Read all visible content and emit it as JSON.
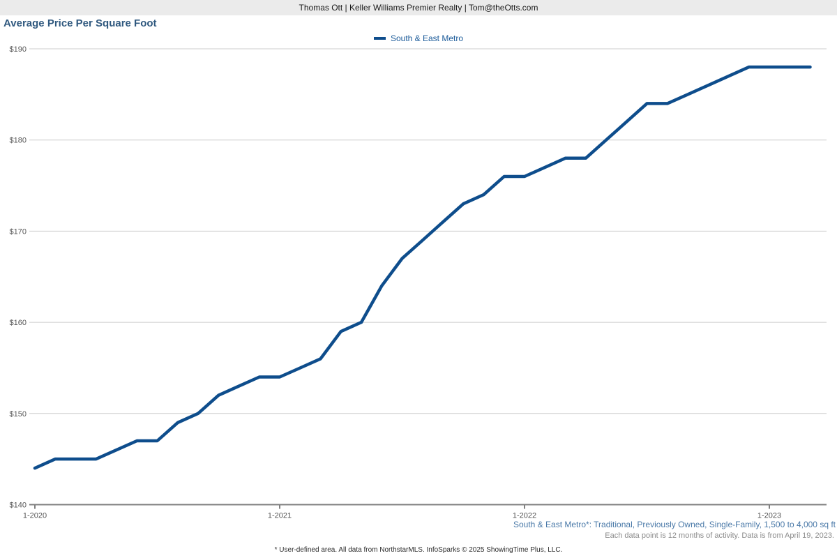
{
  "header": {
    "agent_line": "Thomas Ott | Keller Williams Premier Realty | Tom@theOtts.com"
  },
  "title": "Average Price Per Square Foot",
  "legend": {
    "label": "South & East Metro"
  },
  "footnotes": {
    "series_definition": "South & East Metro*: Traditional, Previously Owned, Single-Family, 1,500 to 4,000 sq ft",
    "data_note": "Each data point is 12 months of activity. Data is from April 19, 2023.",
    "attribution": "* User-defined area. All data from NorthstarMLS. InfoSparks © 2025 ShowingTime Plus, LLC."
  },
  "colors": {
    "line": "#0e4d8c",
    "legend_text": "#1a5a99",
    "gridline": "#cccccc",
    "axis": "#808080",
    "tick_label": "#555555",
    "title": "#30597f",
    "header_bg": "#ebebeb",
    "footnote_blue": "#4a79a8",
    "footnote_gray": "#8a8a8a"
  },
  "chart_data": {
    "type": "line",
    "title": "Average Price Per Square Foot",
    "ylabel": "",
    "xlabel": "",
    "ylim": [
      140,
      190
    ],
    "grid": "horizontal",
    "legend_position": "top-center",
    "y_tick_values": [
      140,
      150,
      160,
      170,
      180,
      190
    ],
    "y_ticks": [
      "$140",
      "$150",
      "$160",
      "$170",
      "$180",
      "$190"
    ],
    "x_ticks": [
      "1-2020",
      "1-2021",
      "1-2022",
      "1-2023"
    ],
    "x_tick_indices": [
      0,
      12,
      24,
      36
    ],
    "x": [
      "1-2020",
      "2-2020",
      "3-2020",
      "4-2020",
      "5-2020",
      "6-2020",
      "7-2020",
      "8-2020",
      "9-2020",
      "10-2020",
      "11-2020",
      "12-2020",
      "1-2021",
      "2-2021",
      "3-2021",
      "4-2021",
      "5-2021",
      "6-2021",
      "7-2021",
      "8-2021",
      "9-2021",
      "10-2021",
      "11-2021",
      "12-2021",
      "1-2022",
      "2-2022",
      "3-2022",
      "4-2022",
      "5-2022",
      "6-2022",
      "7-2022",
      "8-2022",
      "9-2022",
      "10-2022",
      "11-2022",
      "12-2022",
      "1-2023",
      "2-2023",
      "3-2023"
    ],
    "series": [
      {
        "name": "South & East Metro",
        "color": "#0e4d8c",
        "values": [
          144,
          145,
          145,
          145,
          146,
          147,
          147,
          149,
          150,
          152,
          153,
          154,
          154,
          155,
          156,
          159,
          160,
          164,
          167,
          169,
          171,
          173,
          174,
          176,
          176,
          177,
          178,
          178,
          180,
          182,
          184,
          184,
          185,
          186,
          187,
          188,
          188,
          188,
          188
        ]
      }
    ]
  }
}
